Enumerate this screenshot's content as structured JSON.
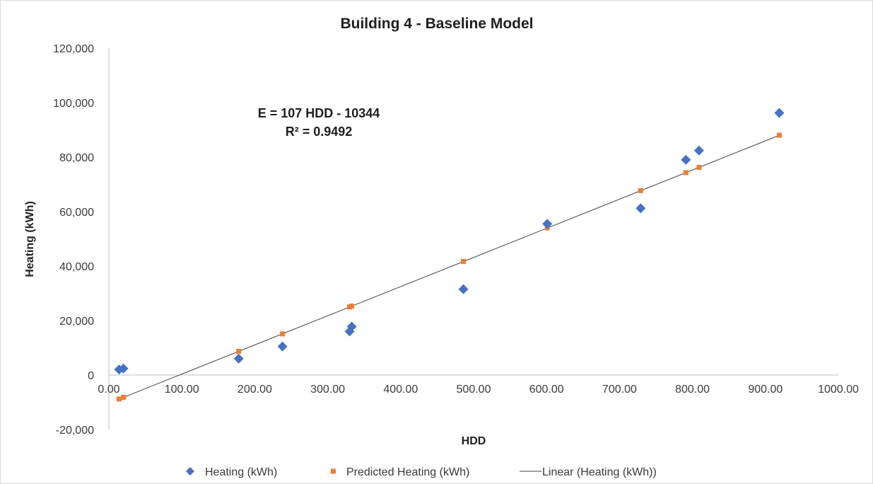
{
  "chart_data": {
    "type": "scatter",
    "title": "Building 4 - Baseline Model",
    "xlabel": "HDD",
    "ylabel": "Heating (kWh)",
    "xlim": [
      0,
      1000
    ],
    "ylim": [
      -20000,
      120000
    ],
    "x_ticks": [
      "0.00",
      "100.00",
      "200.00",
      "300.00",
      "400.00",
      "500.00",
      "600.00",
      "700.00",
      "800.00",
      "900.00",
      "1000.00"
    ],
    "y_ticks": [
      "-20,000",
      "0",
      "20,000",
      "40,000",
      "60,000",
      "80,000",
      "100,000",
      "120,000"
    ],
    "grid": false,
    "legend_position": "bottom",
    "annotation": {
      "line1": "E = 107 HDD - 10344",
      "line2": "R² = 0.9492"
    },
    "series": [
      {
        "name": "Heating (kWh)",
        "marker": "diamond",
        "color": "#4472c4",
        "points": [
          {
            "x": 14,
            "y": 2000
          },
          {
            "x": 20,
            "y": 2400
          },
          {
            "x": 178,
            "y": 6000
          },
          {
            "x": 238,
            "y": 10500
          },
          {
            "x": 330,
            "y": 16000
          },
          {
            "x": 333,
            "y": 17800
          },
          {
            "x": 486,
            "y": 31500
          },
          {
            "x": 601,
            "y": 55500
          },
          {
            "x": 729,
            "y": 61200
          },
          {
            "x": 791,
            "y": 79000
          },
          {
            "x": 809,
            "y": 82400
          },
          {
            "x": 919,
            "y": 96200
          }
        ]
      },
      {
        "name": "Predicted Heating (kWh)",
        "marker": "square",
        "color": "#ed7d31",
        "points": [
          {
            "x": 14,
            "y": -8800
          },
          {
            "x": 20,
            "y": -8200
          },
          {
            "x": 178,
            "y": 8700
          },
          {
            "x": 238,
            "y": 15100
          },
          {
            "x": 330,
            "y": 25000
          },
          {
            "x": 333,
            "y": 25300
          },
          {
            "x": 486,
            "y": 41700
          },
          {
            "x": 601,
            "y": 54000
          },
          {
            "x": 729,
            "y": 67700
          },
          {
            "x": 791,
            "y": 74300
          },
          {
            "x": 809,
            "y": 76200
          },
          {
            "x": 919,
            "y": 88000
          }
        ]
      },
      {
        "name": "Linear (Heating (kWh))",
        "marker": "line",
        "color": "#404040",
        "slope": 107,
        "intercept": -10344,
        "x_range": [
          14,
          919
        ]
      }
    ]
  }
}
